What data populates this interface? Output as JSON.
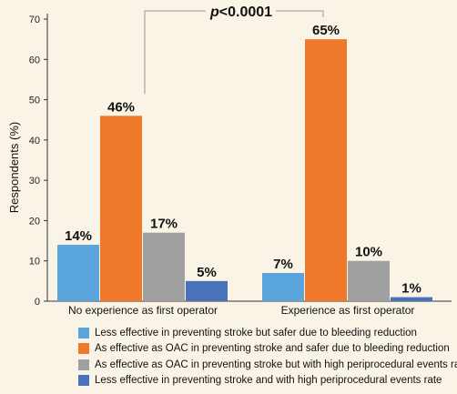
{
  "chart_data": {
    "type": "bar",
    "categories": [
      "No experience as first operator",
      "Experience as first operator"
    ],
    "series": [
      {
        "name": "Less effective in preventing stroke but safer due to bleeding reduction",
        "values": [
          14,
          7
        ],
        "labels": [
          "14%",
          "7%"
        ],
        "color": "#5aa6dc"
      },
      {
        "name": "As effective as OAC in preventing stroke and safer due to bleeding reduction",
        "values": [
          46,
          65
        ],
        "labels": [
          "46%",
          "65%"
        ],
        "color": "#f0782a"
      },
      {
        "name": "As effective as OAC in preventing stroke but with high periprocedural events rate",
        "values": [
          17,
          10
        ],
        "labels": [
          "17%",
          "10%"
        ],
        "color": "#a0a0a0"
      },
      {
        "name": "Less effective in preventing stroke and with high periprocedural events rate",
        "values": [
          5,
          1
        ],
        "labels": [
          "5%",
          "1%"
        ],
        "color": "#4a72ba"
      }
    ],
    "ylabel": "Respondents (%)",
    "ylim": [
      0,
      70
    ],
    "yticks": [
      0,
      10,
      20,
      30,
      40,
      50,
      60,
      70
    ],
    "annotation": {
      "text_italic": "p",
      "text_rest": "<0.0001"
    },
    "legend_position": "bottom",
    "grid": false,
    "background": "#f9f4e5"
  }
}
